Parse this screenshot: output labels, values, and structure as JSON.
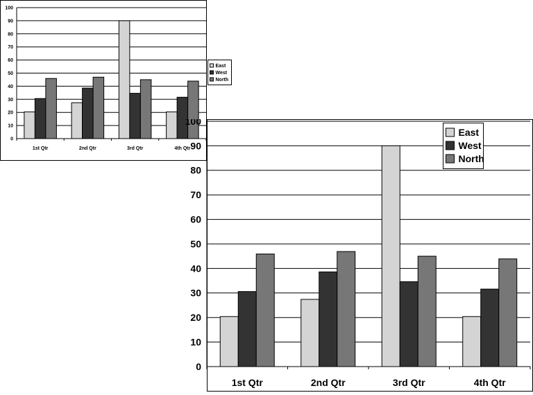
{
  "chart_data": [
    {
      "type": "bar",
      "categories": [
        "1st Qtr",
        "2nd Qtr",
        "3rd Qtr",
        "4th Qtr"
      ],
      "series": [
        {
          "name": "East",
          "values": [
            20.4,
            27.4,
            90,
            20.4
          ],
          "color": "#d4d4d4"
        },
        {
          "name": "West",
          "values": [
            30.6,
            38.6,
            34.6,
            31.6
          ],
          "color": "#333333"
        },
        {
          "name": "North",
          "values": [
            45.9,
            46.9,
            45,
            43.9
          ],
          "color": "#777777"
        }
      ],
      "ylim": [
        0,
        100
      ],
      "yticks": [
        0,
        10,
        20,
        30,
        40,
        50,
        60,
        70,
        80,
        90,
        100
      ],
      "grid": true,
      "legend": "right"
    },
    {
      "type": "bar",
      "categories": [
        "1st Qtr",
        "2nd Qtr",
        "3rd Qtr",
        "4th Qtr"
      ],
      "series": [
        {
          "name": "East",
          "values": [
            20.4,
            27.4,
            90,
            20.4
          ],
          "color": "#d4d4d4"
        },
        {
          "name": "West",
          "values": [
            30.6,
            38.6,
            34.6,
            31.6
          ],
          "color": "#333333"
        },
        {
          "name": "North",
          "values": [
            45.9,
            46.9,
            45,
            43.9
          ],
          "color": "#777777"
        }
      ],
      "ylim": [
        0,
        100
      ],
      "yticks": [
        0,
        10,
        20,
        30,
        40,
        50,
        60,
        70,
        80,
        90,
        100
      ],
      "grid": true,
      "legend": "top-right"
    }
  ]
}
